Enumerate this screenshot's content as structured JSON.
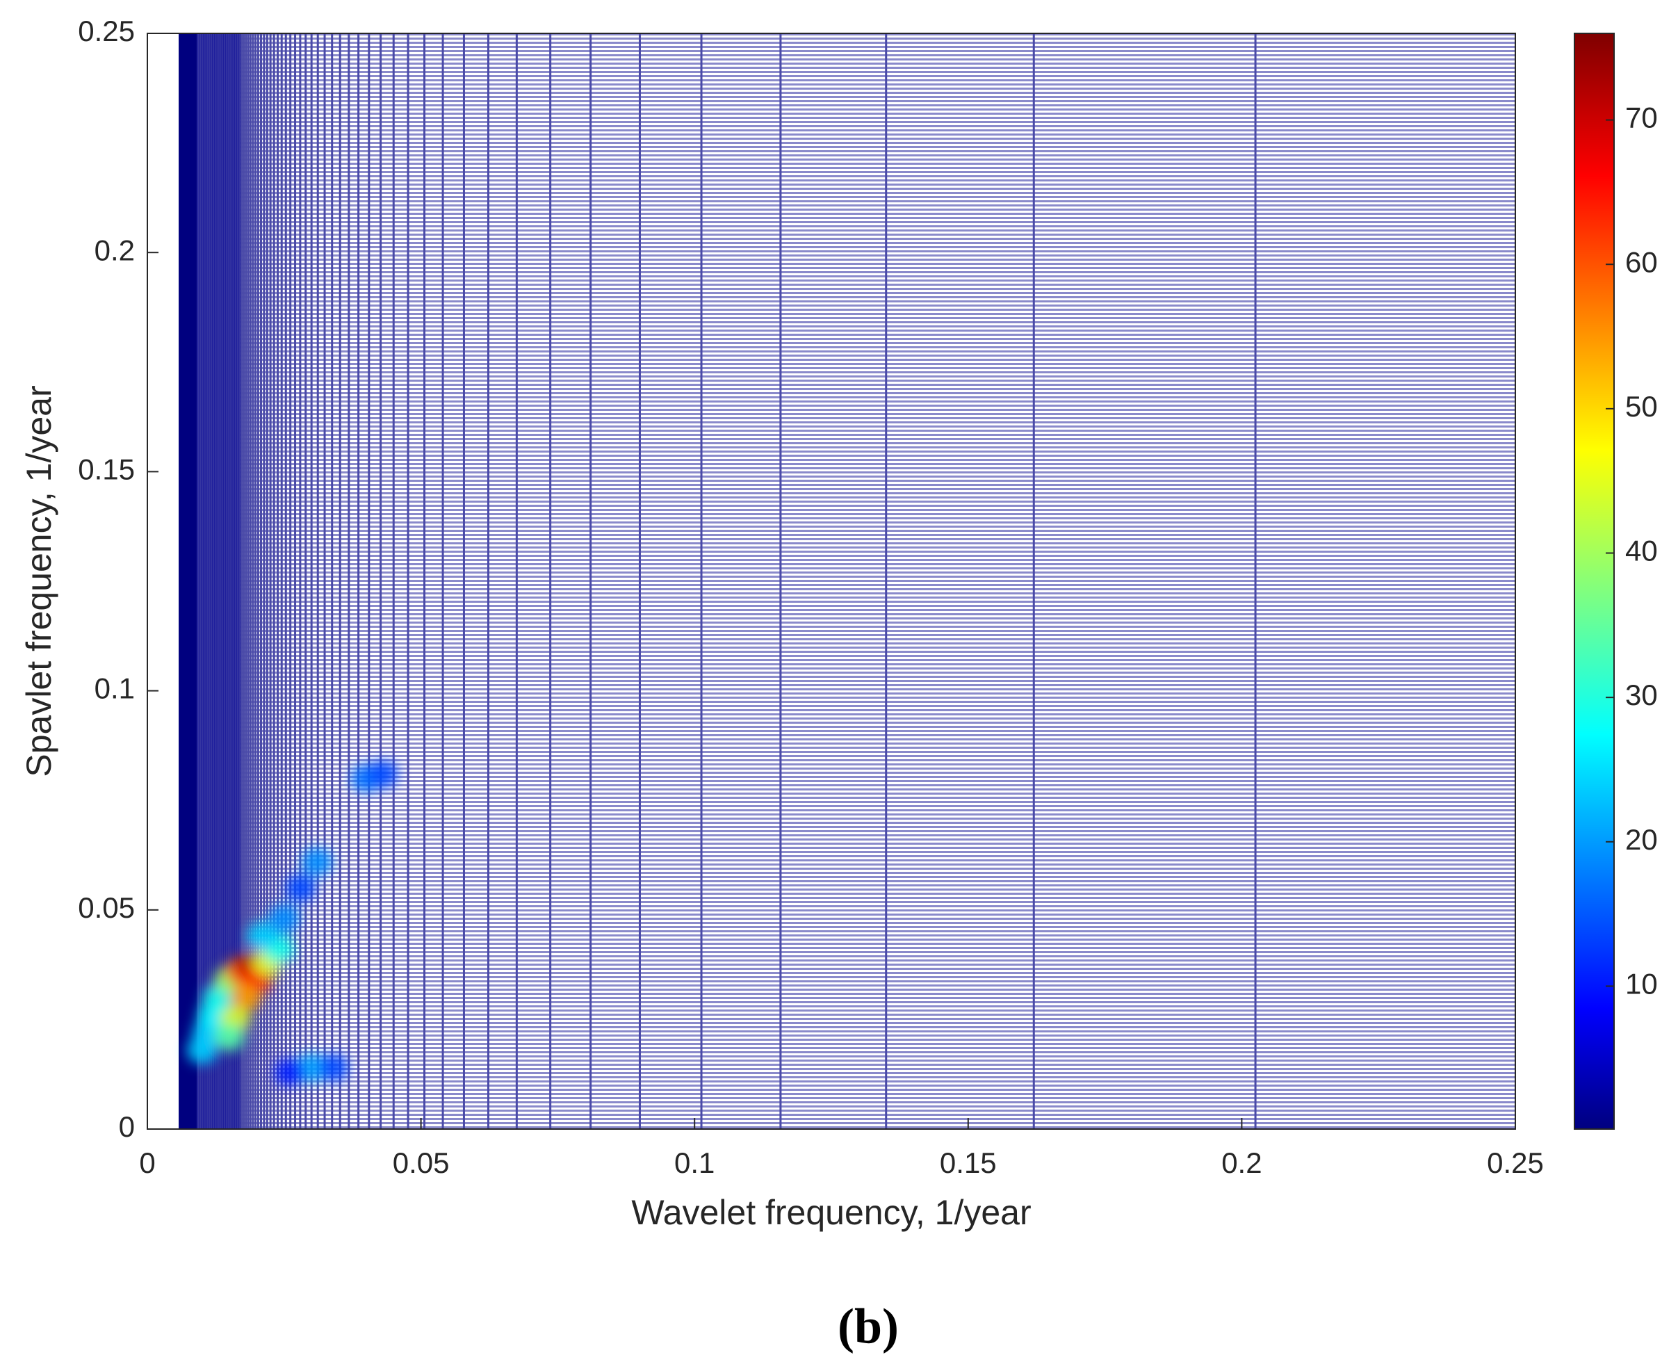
{
  "chart_data": {
    "type": "heatmap",
    "caption": "(b)",
    "xlabel": "Wavelet frequency, 1/year",
    "ylabel": "Spavlet frequency, 1/year",
    "xlim": [
      0,
      0.25
    ],
    "ylim": [
      0,
      0.25
    ],
    "xticks": [
      0,
      0.05,
      0.1,
      0.15,
      0.2,
      0.25
    ],
    "yticks": [
      0,
      0.05,
      0.1,
      0.15,
      0.2,
      0.25
    ],
    "colormap": "jet",
    "clim": [
      0.1,
      76
    ],
    "cticks": [
      10,
      20,
      30,
      40,
      50,
      60,
      70
    ],
    "x": [
      0.01,
      0.011,
      0.012,
      0.013,
      0.015,
      0.017,
      0.019,
      0.02,
      0.018,
      0.016,
      0.015,
      0.022,
      0.024,
      0.021,
      0.025,
      0.028,
      0.031,
      0.04,
      0.043,
      0.03,
      0.034,
      0.026
    ],
    "y": [
      0.018,
      0.022,
      0.026,
      0.03,
      0.034,
      0.036,
      0.037,
      0.034,
      0.03,
      0.025,
      0.021,
      0.038,
      0.041,
      0.044,
      0.048,
      0.055,
      0.061,
      0.08,
      0.081,
      0.014,
      0.014,
      0.013
    ],
    "values": [
      25,
      25,
      28,
      30,
      40,
      60,
      72,
      65,
      55,
      45,
      35,
      45,
      30,
      25,
      20,
      15,
      20,
      18,
      15,
      22,
      15,
      12
    ]
  }
}
